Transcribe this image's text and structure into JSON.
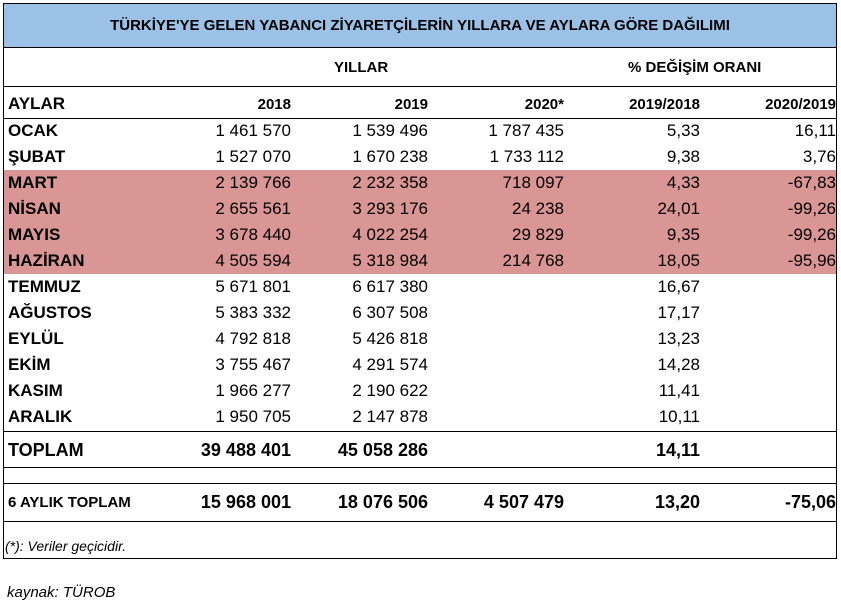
{
  "title": "TÜRKİYE'YE GELEN YABANCI ZİYARETÇİLERİN YILLARA VE AYLARA GÖRE DAĞILIMI",
  "group_headers": {
    "years": "YILLAR",
    "change": "% DEĞİŞİM ORANI"
  },
  "columns": [
    "AYLAR",
    "2018",
    "2019",
    "2020*",
    "2019/2018",
    "2020/2019"
  ],
  "rows": [
    {
      "month": "OCAK",
      "y2018": "1 461 570",
      "y2019": "1 539 496",
      "y2020": "1 787 435",
      "c1918": "5,33",
      "c2019": "16,11",
      "highlight": false
    },
    {
      "month": "ŞUBAT",
      "y2018": "1 527 070",
      "y2019": "1 670 238",
      "y2020": "1 733 112",
      "c1918": "9,38",
      "c2019": "3,76",
      "highlight": false
    },
    {
      "month": "MART",
      "y2018": "2 139 766",
      "y2019": "2 232 358",
      "y2020": "718 097",
      "c1918": "4,33",
      "c2019": "-67,83",
      "highlight": true
    },
    {
      "month": "NİSAN",
      "y2018": "2 655 561",
      "y2019": "3 293 176",
      "y2020": "24 238",
      "c1918": "24,01",
      "c2019": "-99,26",
      "highlight": true
    },
    {
      "month": "MAYIS",
      "y2018": "3 678 440",
      "y2019": "4 022 254",
      "y2020": "29 829",
      "c1918": "9,35",
      "c2019": "-99,26",
      "highlight": true
    },
    {
      "month": "HAZİRAN",
      "y2018": "4 505 594",
      "y2019": "5 318 984",
      "y2020": "214 768",
      "c1918": "18,05",
      "c2019": "-95,96",
      "highlight": true
    },
    {
      "month": "TEMMUZ",
      "y2018": "5 671 801",
      "y2019": "6 617 380",
      "y2020": "",
      "c1918": "16,67",
      "c2019": "",
      "highlight": false
    },
    {
      "month": "AĞUSTOS",
      "y2018": "5 383 332",
      "y2019": "6 307 508",
      "y2020": "",
      "c1918": "17,17",
      "c2019": "",
      "highlight": false
    },
    {
      "month": "EYLÜL",
      "y2018": "4 792 818",
      "y2019": "5 426 818",
      "y2020": "",
      "c1918": "13,23",
      "c2019": "",
      "highlight": false
    },
    {
      "month": "EKİM",
      "y2018": "3 755 467",
      "y2019": "4 291 574",
      "y2020": "",
      "c1918": "14,28",
      "c2019": "",
      "highlight": false
    },
    {
      "month": "KASIM",
      "y2018": "1 966 277",
      "y2019": "2 190 622",
      "y2020": "",
      "c1918": "11,41",
      "c2019": "",
      "highlight": false
    },
    {
      "month": "ARALIK",
      "y2018": "1 950 705",
      "y2019": "2 147 878",
      "y2020": "",
      "c1918": "10,11",
      "c2019": "",
      "highlight": false
    }
  ],
  "total": {
    "label": "TOPLAM",
    "y2018": "39 488 401",
    "y2019": "45 058 286",
    "y2020": "",
    "c1918": "14,11",
    "c2019": ""
  },
  "six_month_total": {
    "label": "6 AYLIK TOPLAM",
    "y2018": "15 968 001",
    "y2019": "18 076 506",
    "y2020": "4 507 479",
    "c1918": "13,20",
    "c2019": "-75,06"
  },
  "note": "(*): Veriler geçicidir.",
  "source": "kaynak: TÜROB",
  "colors": {
    "title_bg": "#9bc2e6",
    "highlight_bg": "#da9694"
  }
}
